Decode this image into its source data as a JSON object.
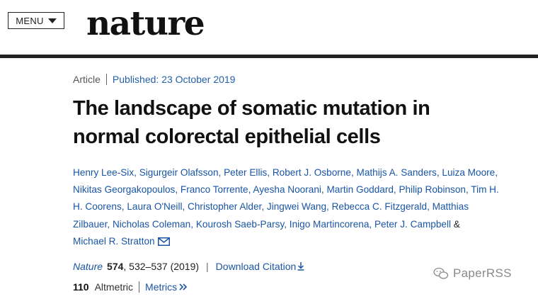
{
  "header": {
    "menu_label": "MENU",
    "logo_text": "nature"
  },
  "article_meta": {
    "type": "Article",
    "published": "Published: 23 October 2019"
  },
  "title": "The landscape of somatic mutation in normal colorectal epithelial cells",
  "authors": [
    "Henry Lee-Six",
    "Sigurgeir Olafsson",
    "Peter Ellis",
    "Robert J. Osborne",
    "Mathijs A. Sanders",
    "Luiza Moore",
    "Nikitas Georgakopoulos",
    "Franco Torrente",
    "Ayesha Noorani",
    "Martin Goddard",
    "Philip Robinson",
    "Tim H. H. Coorens",
    "Laura O'Neill",
    "Christopher Alder",
    "Jingwei Wang",
    "Rebecca C. Fitzgerald",
    "Matthias Zilbauer",
    "Nicholas Coleman",
    "Kourosh Saeb-Parsy",
    "Inigo Martincorena",
    "Peter J. Campbell"
  ],
  "authors_amp": "&",
  "last_author": "Michael R. Stratton",
  "citation": {
    "journal": "Nature",
    "volume": "574",
    "pages": ", 532–537 (2019)",
    "separator": "|",
    "download_label": "Download Citation"
  },
  "metrics": {
    "count": "110",
    "label": "Altmetric",
    "link_label": "Metrics"
  },
  "watermark": {
    "text": "PaperRSS"
  },
  "colors": {
    "link": "#1a55a3",
    "rule": "#222222"
  }
}
